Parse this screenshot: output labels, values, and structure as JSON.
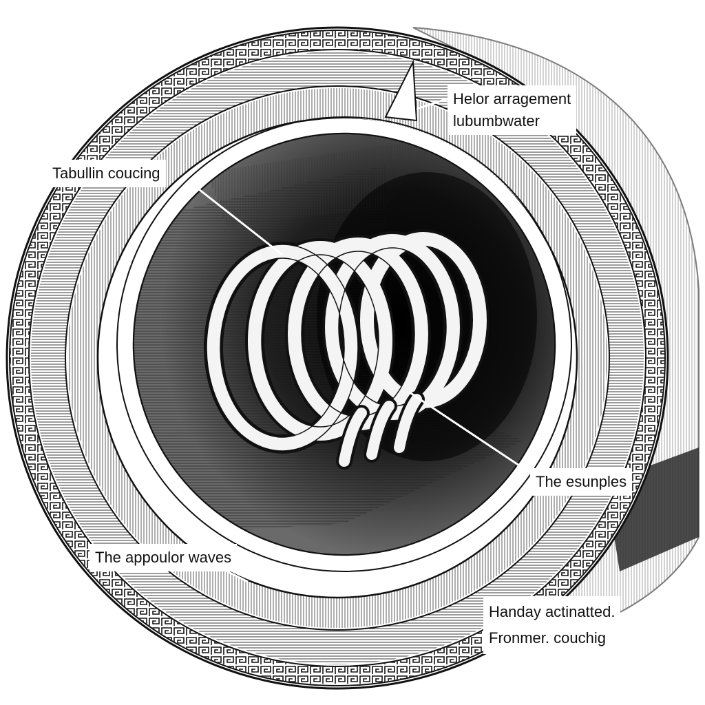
{
  "diagram": {
    "subject": "helical coil inside a circular tunnel cross-section",
    "style": "black ink line engraving on white",
    "colors": {
      "ink": "#111111",
      "paper": "#ffffff",
      "shade": "#3a3a3a"
    }
  },
  "labels": {
    "tabullin": "Tabullin coucing",
    "helor_1": "Helor arragement",
    "helor_2": "lubumbwater",
    "esunples": "The esunples",
    "appoulor": "The appoulor waves",
    "handay_1": "Handay actinatted.",
    "handay_2": "Fronmer. couchig"
  }
}
